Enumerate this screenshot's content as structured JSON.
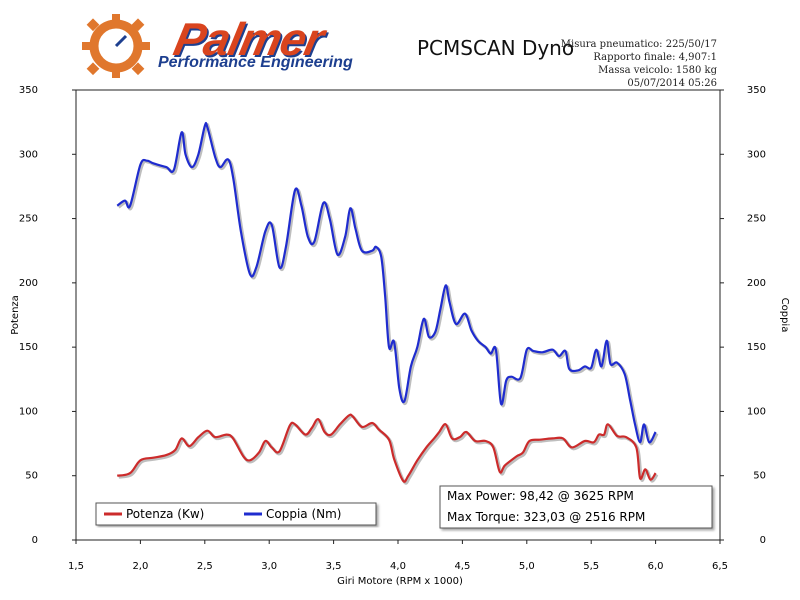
{
  "header": {
    "logo_name": "Palmer",
    "logo_tagline": "Performance Engineering",
    "title": "PCMSCAN Dyno",
    "meta_lines": [
      "Misura pneumatico: 225/50/17",
      "Rapporto finale: 4,907:1",
      "Massa veicolo: 1580 kg",
      "05/07/2014 05:26"
    ]
  },
  "colors": {
    "power": "#cc2b2b",
    "torque": "#1f2ccf"
  },
  "chart_data": {
    "type": "line",
    "title": "PCMSCAN Dyno",
    "xlabel": "Giri Motore (RPM x 1000)",
    "ylabel": "Potenza",
    "ylabel_right": "Coppia",
    "xlim": [
      1.5,
      6.5
    ],
    "ylim": [
      0,
      350
    ],
    "xticks": [
      "1,5",
      "2,0",
      "2,5",
      "3,0",
      "3,5",
      "4,0",
      "4,5",
      "5,0",
      "5,5",
      "6,0",
      "6,5"
    ],
    "yticks": [
      "0",
      "50",
      "100",
      "150",
      "200",
      "250",
      "300",
      "350"
    ],
    "grid": false,
    "legend_position": "bottom-left",
    "annotations": [
      "Max Power: 98,42 @ 3625 RPM",
      "Max Torque: 323,03 @ 2516 RPM"
    ],
    "series": [
      {
        "name": "Potenza (Kw)",
        "x": [
          1.82,
          1.92,
          2.0,
          2.1,
          2.2,
          2.27,
          2.32,
          2.38,
          2.45,
          2.52,
          2.58,
          2.67,
          2.72,
          2.8,
          2.85,
          2.92,
          2.97,
          3.02,
          3.08,
          3.16,
          3.2,
          3.28,
          3.33,
          3.38,
          3.43,
          3.48,
          3.55,
          3.62,
          3.65,
          3.72,
          3.8,
          3.85,
          3.93,
          3.97,
          4.04,
          4.08,
          4.15,
          4.22,
          4.28,
          4.32,
          4.37,
          4.42,
          4.48,
          4.53,
          4.6,
          4.68,
          4.74,
          4.79,
          4.83,
          4.92,
          4.97,
          5.02,
          5.1,
          5.2,
          5.28,
          5.35,
          5.45,
          5.52,
          5.56,
          5.6,
          5.63,
          5.7,
          5.77,
          5.85,
          5.88,
          5.92,
          5.96,
          6.0
        ],
        "y": [
          50,
          52,
          62,
          64,
          66,
          70,
          79,
          73,
          80,
          85,
          80,
          82,
          79,
          65,
          62,
          68,
          77,
          72,
          69,
          89,
          90,
          82,
          87,
          94,
          84,
          82,
          90,
          97,
          96,
          88,
          91,
          86,
          78,
          63,
          46,
          50,
          62,
          72,
          79,
          84,
          90,
          79,
          80,
          84,
          77,
          77,
          72,
          53,
          58,
          65,
          68,
          77,
          78,
          79,
          79,
          72,
          77,
          76,
          82,
          82,
          90,
          81,
          80,
          72,
          48,
          55,
          47,
          52
        ]
      },
      {
        "name": "Coppia (Nm)",
        "x": [
          1.82,
          1.88,
          1.92,
          2.0,
          2.05,
          2.1,
          2.2,
          2.26,
          2.32,
          2.35,
          2.4,
          2.45,
          2.5,
          2.52,
          2.58,
          2.62,
          2.68,
          2.72,
          2.78,
          2.85,
          2.9,
          2.97,
          3.02,
          3.08,
          3.13,
          3.2,
          3.25,
          3.3,
          3.35,
          3.42,
          3.47,
          3.53,
          3.59,
          3.63,
          3.67,
          3.72,
          3.8,
          3.83,
          3.87,
          3.9,
          3.93,
          3.97,
          4.01,
          4.05,
          4.1,
          4.15,
          4.2,
          4.24,
          4.29,
          4.33,
          4.37,
          4.4,
          4.45,
          4.52,
          4.57,
          4.62,
          4.68,
          4.72,
          4.76,
          4.8,
          4.84,
          4.88,
          4.95,
          5.0,
          5.05,
          5.12,
          5.2,
          5.25,
          5.3,
          5.33,
          5.4,
          5.45,
          5.5,
          5.54,
          5.58,
          5.62,
          5.65,
          5.7,
          5.76,
          5.8,
          5.84,
          5.88,
          5.91,
          5.95,
          6.0
        ],
        "y": [
          260,
          264,
          260,
          292,
          295,
          293,
          290,
          288,
          317,
          300,
          290,
          300,
          322,
          321,
          298,
          290,
          296,
          282,
          240,
          207,
          212,
          240,
          245,
          212,
          228,
          272,
          260,
          236,
          232,
          262,
          250,
          222,
          236,
          258,
          242,
          225,
          225,
          228,
          220,
          190,
          150,
          154,
          118,
          108,
          135,
          150,
          172,
          158,
          162,
          180,
          198,
          185,
          168,
          176,
          163,
          155,
          150,
          145,
          148,
          106,
          124,
          127,
          126,
          148,
          147,
          146,
          148,
          143,
          147,
          133,
          132,
          135,
          134,
          148,
          135,
          155,
          137,
          138,
          129,
          110,
          90,
          76,
          90,
          76,
          84
        ]
      }
    ]
  }
}
